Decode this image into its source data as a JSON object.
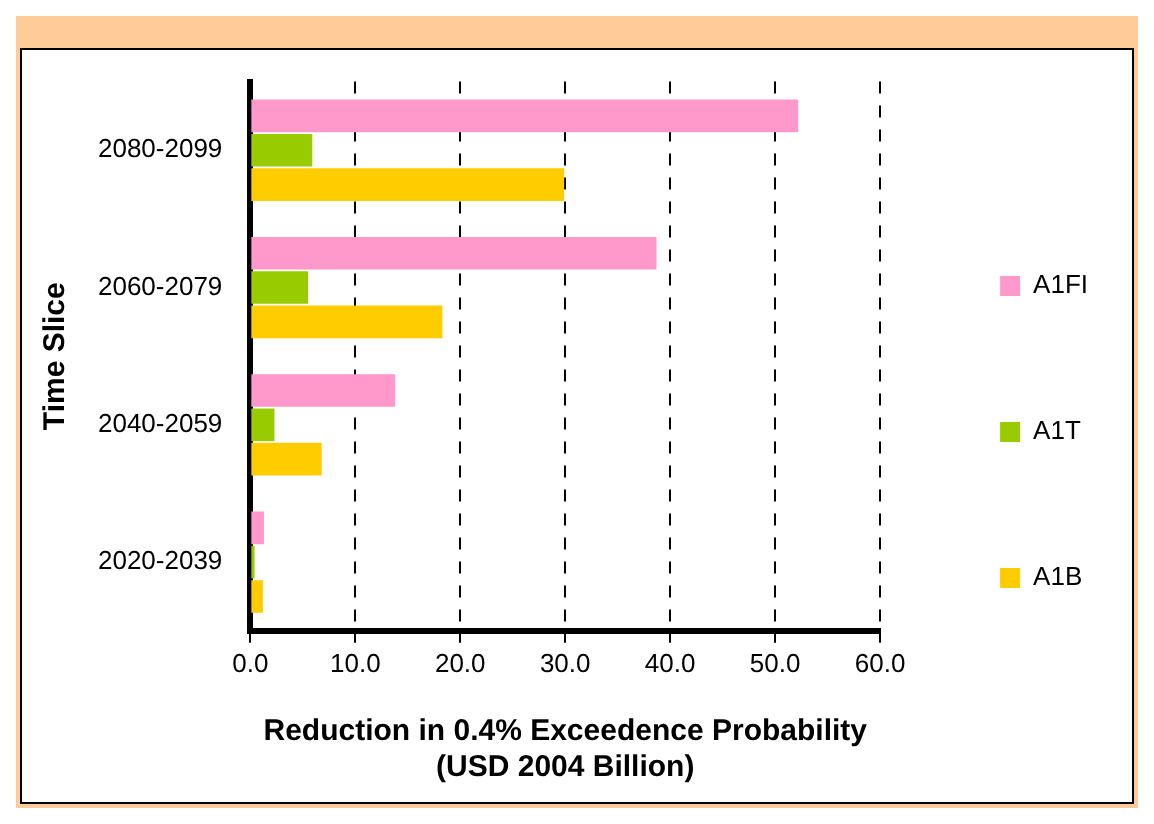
{
  "chart_data": {
    "type": "bar",
    "orientation": "horizontal",
    "xlabel": "Reduction in 0.4% Exceedence Probability\n(USD 2004 Billion)",
    "ylabel": "Time Slice",
    "categories": [
      "2080-2099",
      "2060-2079",
      "2040-2059",
      "2020-2039"
    ],
    "series": [
      {
        "name": "A1FI",
        "color": "#ff99cc",
        "values": [
          52.2,
          38.7,
          13.8,
          1.3
        ]
      },
      {
        "name": "A1T",
        "color": "#99cc00",
        "values": [
          5.9,
          5.5,
          2.3,
          0.4
        ]
      },
      {
        "name": "A1B",
        "color": "#ffcc00",
        "values": [
          29.9,
          18.3,
          6.8,
          1.2
        ]
      }
    ],
    "xlim": [
      0,
      60
    ],
    "xticks": [
      {
        "value": 0,
        "label": "0.0"
      },
      {
        "value": 10,
        "label": "10.0"
      },
      {
        "value": 20,
        "label": "20.0"
      },
      {
        "value": 30,
        "label": "30.0"
      },
      {
        "value": 40,
        "label": "40.0"
      },
      {
        "value": 50,
        "label": "50.0"
      },
      {
        "value": 60,
        "label": "60.0"
      }
    ],
    "grid": "x",
    "legend": "right"
  }
}
